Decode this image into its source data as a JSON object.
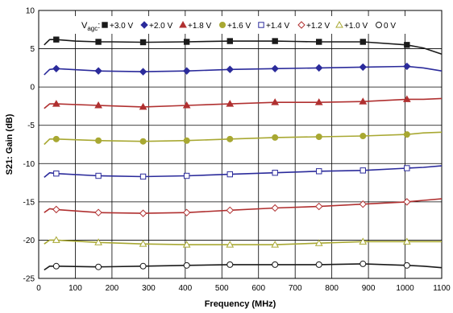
{
  "chart_data": {
    "type": "line",
    "title": "",
    "xlabel": "Frequency (MHz)",
    "ylabel": "S21: Gain (dB)",
    "xlim": [
      0,
      1100
    ],
    "ylim": [
      -25,
      10
    ],
    "xticks": [
      0,
      100,
      200,
      300,
      400,
      500,
      600,
      700,
      800,
      900,
      1000,
      1100
    ],
    "yticks": [
      10,
      5,
      0,
      -5,
      -10,
      -15,
      -20,
      -25
    ],
    "grid": true,
    "legend": {
      "title": "V",
      "title_sub": "agc",
      "title_suffix": ":",
      "placement": "top"
    },
    "series": [
      {
        "name": "+3.0 V",
        "color": "#1a1a1a",
        "marker": "square-filled",
        "x": [
          15,
          30,
          48,
          100,
          163,
          200,
          285,
          300,
          400,
          522,
          600,
          645,
          700,
          765,
          800,
          885,
          900,
          1005,
          1050,
          1100
        ],
        "y": [
          5.5,
          6.2,
          6.2,
          6.0,
          5.9,
          5.9,
          5.85,
          5.85,
          5.9,
          6.0,
          6.0,
          6.0,
          5.95,
          5.9,
          5.9,
          5.9,
          5.85,
          5.5,
          5.1,
          4.3
        ],
        "mx": [
          48,
          163,
          285,
          404,
          522,
          645,
          765,
          885,
          1005
        ],
        "my": [
          6.2,
          5.9,
          5.85,
          5.9,
          6.0,
          6.0,
          5.9,
          5.9,
          5.5
        ]
      },
      {
        "name": "+2.0 V",
        "color": "#2b2b9b",
        "marker": "diamond-filled",
        "x": [
          15,
          30,
          48,
          163,
          285,
          404,
          522,
          645,
          765,
          885,
          1005,
          1050,
          1100
        ],
        "y": [
          1.6,
          2.3,
          2.4,
          2.1,
          2.0,
          2.1,
          2.3,
          2.4,
          2.5,
          2.6,
          2.7,
          2.5,
          2.1
        ],
        "mx": [
          48,
          163,
          285,
          404,
          522,
          645,
          765,
          885,
          1005
        ],
        "my": [
          2.4,
          2.1,
          2.0,
          2.1,
          2.3,
          2.4,
          2.5,
          2.6,
          2.7
        ]
      },
      {
        "name": "+1.8 V",
        "color": "#b03030",
        "marker": "triangle-filled",
        "x": [
          15,
          30,
          48,
          163,
          285,
          404,
          522,
          645,
          765,
          885,
          1005,
          1050,
          1100
        ],
        "y": [
          -2.8,
          -2.2,
          -2.2,
          -2.4,
          -2.6,
          -2.4,
          -2.2,
          -2.0,
          -2.0,
          -1.9,
          -1.6,
          -1.6,
          -1.5
        ],
        "mx": [
          48,
          163,
          285,
          404,
          522,
          645,
          765,
          885,
          1005
        ],
        "my": [
          -2.2,
          -2.4,
          -2.6,
          -2.4,
          -2.2,
          -2.0,
          -2.0,
          -1.9,
          -1.6
        ]
      },
      {
        "name": "+1.6 V",
        "color": "#a8a832",
        "marker": "circle-filled",
        "x": [
          15,
          30,
          48,
          163,
          285,
          404,
          522,
          645,
          765,
          885,
          1005,
          1050,
          1100
        ],
        "y": [
          -7.5,
          -6.8,
          -6.8,
          -7.0,
          -7.1,
          -7.0,
          -6.8,
          -6.6,
          -6.5,
          -6.4,
          -6.2,
          -6.0,
          -5.9
        ],
        "mx": [
          48,
          163,
          285,
          404,
          522,
          645,
          765,
          885,
          1005
        ],
        "my": [
          -6.8,
          -7.0,
          -7.1,
          -7.0,
          -6.8,
          -6.6,
          -6.5,
          -6.4,
          -6.2
        ]
      },
      {
        "name": "+1.4 V",
        "color": "#2b2b9b",
        "marker": "square-open",
        "x": [
          15,
          30,
          48,
          163,
          285,
          404,
          522,
          645,
          765,
          885,
          1005,
          1050,
          1100
        ],
        "y": [
          -11.8,
          -11.2,
          -11.3,
          -11.6,
          -11.7,
          -11.6,
          -11.4,
          -11.2,
          -11.0,
          -10.9,
          -10.6,
          -10.5,
          -10.3
        ],
        "mx": [
          48,
          163,
          285,
          404,
          522,
          645,
          765,
          885,
          1005
        ],
        "my": [
          -11.3,
          -11.6,
          -11.7,
          -11.6,
          -11.4,
          -11.2,
          -11.0,
          -10.9,
          -10.6
        ]
      },
      {
        "name": "+1.2 V",
        "color": "#b03030",
        "marker": "diamond-open",
        "x": [
          15,
          30,
          48,
          163,
          285,
          404,
          522,
          645,
          765,
          885,
          1005,
          1050,
          1100
        ],
        "y": [
          -16.4,
          -15.9,
          -16.0,
          -16.4,
          -16.5,
          -16.4,
          -16.1,
          -15.8,
          -15.6,
          -15.3,
          -15.0,
          -14.8,
          -14.6
        ],
        "mx": [
          48,
          163,
          285,
          404,
          522,
          645,
          765,
          885,
          1005
        ],
        "my": [
          -16.0,
          -16.4,
          -16.5,
          -16.4,
          -16.1,
          -15.8,
          -15.6,
          -15.3,
          -15.0
        ]
      },
      {
        "name": "+1.0 V",
        "color": "#a8a832",
        "marker": "triangle-open",
        "x": [
          15,
          30,
          48,
          163,
          285,
          404,
          522,
          645,
          765,
          885,
          1005,
          1050,
          1100
        ],
        "y": [
          -20.5,
          -20.0,
          -20.0,
          -20.3,
          -20.5,
          -20.6,
          -20.6,
          -20.6,
          -20.4,
          -20.2,
          -20.2,
          -20.2,
          -20.2
        ],
        "mx": [
          48,
          163,
          285,
          404,
          522,
          645,
          765,
          885,
          1005
        ],
        "my": [
          -20.0,
          -20.3,
          -20.5,
          -20.6,
          -20.6,
          -20.6,
          -20.4,
          -20.2,
          -20.2
        ]
      },
      {
        "name": "0 V",
        "color": "#1a1a1a",
        "marker": "circle-open",
        "x": [
          15,
          30,
          48,
          163,
          285,
          404,
          522,
          645,
          765,
          885,
          1005,
          1050,
          1100
        ],
        "y": [
          -23.9,
          -23.4,
          -23.4,
          -23.5,
          -23.4,
          -23.3,
          -23.2,
          -23.2,
          -23.2,
          -23.1,
          -23.3,
          -23.4,
          -23.6
        ],
        "mx": [
          48,
          163,
          285,
          404,
          522,
          645,
          765,
          885,
          1005
        ],
        "my": [
          -23.4,
          -23.5,
          -23.4,
          -23.3,
          -23.2,
          -23.2,
          -23.2,
          -23.1,
          -23.3
        ]
      }
    ]
  }
}
